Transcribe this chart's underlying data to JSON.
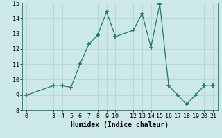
{
  "xlabel": "Humidex (Indice chaleur)",
  "x": [
    0,
    3,
    4,
    5,
    6,
    7,
    8,
    9,
    10,
    12,
    13,
    14,
    15,
    16,
    17,
    18,
    19,
    20,
    21
  ],
  "y": [
    9.0,
    9.6,
    9.6,
    9.5,
    11.0,
    12.3,
    12.9,
    14.4,
    12.8,
    13.2,
    14.3,
    12.1,
    14.9,
    9.6,
    9.0,
    8.4,
    9.0,
    9.6,
    9.6
  ],
  "line_color": "#1a7a6e",
  "marker": "+",
  "bg_color": "#cce8e8",
  "grid_color": "#b8d8d8",
  "ylim": [
    8,
    15
  ],
  "xlim": [
    -0.5,
    21.5
  ],
  "yticks": [
    8,
    9,
    10,
    11,
    12,
    13,
    14,
    15
  ],
  "xticks": [
    0,
    3,
    4,
    5,
    6,
    7,
    8,
    9,
    10,
    12,
    13,
    14,
    15,
    16,
    17,
    18,
    19,
    20,
    21
  ],
  "title_fontsize": 7,
  "label_fontsize": 7,
  "tick_fontsize": 6
}
